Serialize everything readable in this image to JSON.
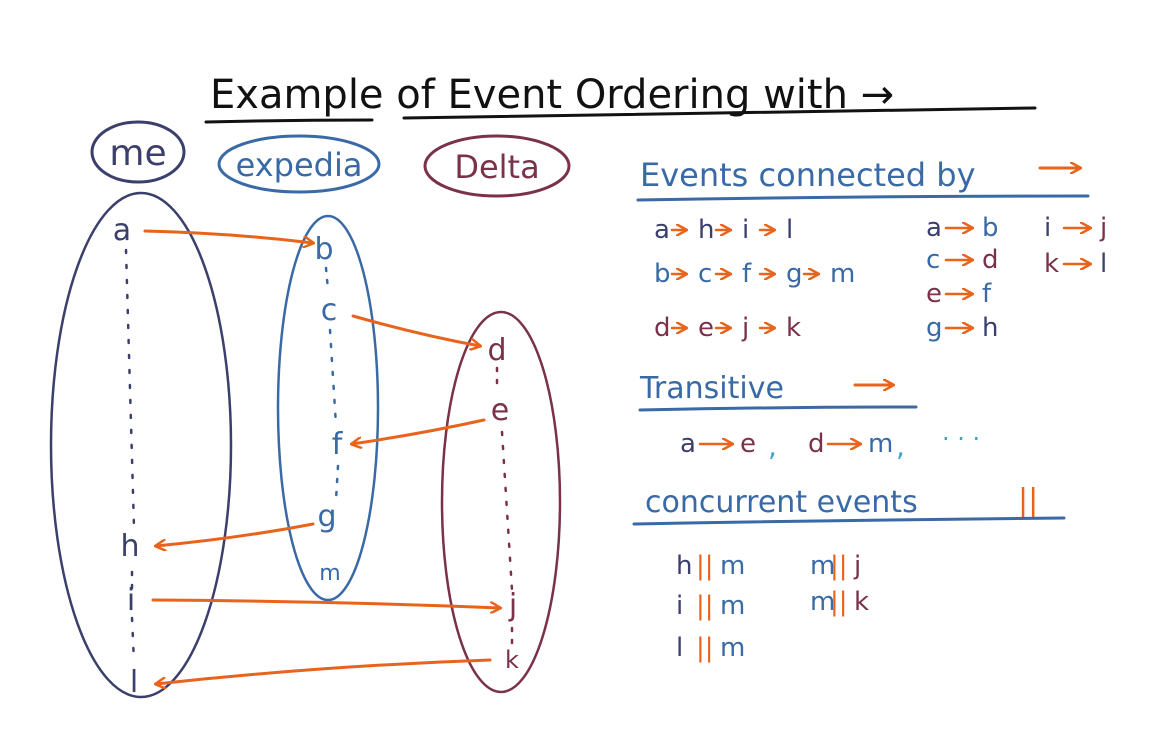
{
  "title": "Example of Event Ordering with →",
  "colors": {
    "ink": "#111111",
    "me": "#3b3f6b",
    "expedia": "#3a6aa6",
    "delta": "#7a3248",
    "arrow": "#e8641c",
    "cyan": "#37a7c8"
  },
  "processes": {
    "me": {
      "label": "me",
      "events": [
        "a",
        "h",
        "i",
        "l"
      ]
    },
    "expedia": {
      "label": "expedia",
      "events": [
        "b",
        "c",
        "f",
        "g",
        "m"
      ]
    },
    "delta": {
      "label": "Delta",
      "events": [
        "d",
        "e",
        "j",
        "k"
      ]
    }
  },
  "messages": [
    {
      "from": "a",
      "to": "b"
    },
    {
      "from": "c",
      "to": "d"
    },
    {
      "from": "e",
      "to": "f"
    },
    {
      "from": "g",
      "to": "h"
    },
    {
      "from": "i",
      "to": "j"
    },
    {
      "from": "k",
      "to": "l"
    }
  ],
  "sections": {
    "connected": {
      "heading": "Events connected by",
      "chains": [
        {
          "items": [
            "a",
            "h",
            "i",
            "l"
          ]
        },
        {
          "items": [
            "b",
            "c",
            "f",
            "g",
            "m"
          ]
        },
        {
          "items": [
            "d",
            "e",
            "j",
            "k"
          ]
        }
      ],
      "pairs_col1": [
        {
          "a": "a",
          "b": "b"
        },
        {
          "a": "c",
          "b": "d"
        },
        {
          "a": "e",
          "b": "f"
        },
        {
          "a": "g",
          "b": "h"
        }
      ],
      "pairs_col2": [
        {
          "a": "i",
          "b": "j"
        },
        {
          "a": "k",
          "b": "l"
        }
      ]
    },
    "transitive": {
      "heading": "Transitive",
      "items": [
        {
          "a": "a",
          "b": "e"
        },
        {
          "a": "d",
          "b": "m"
        }
      ],
      "ellipsis": ". . ."
    },
    "concurrent": {
      "heading": "concurrent events",
      "symbol": "||",
      "pairs_col1": [
        {
          "a": "h",
          "b": "m"
        },
        {
          "a": "i",
          "b": "m"
        },
        {
          "a": "l",
          "b": "m"
        }
      ],
      "pairs_col2": [
        {
          "a": "m",
          "b": "j"
        },
        {
          "a": "m",
          "b": "k"
        }
      ]
    }
  }
}
